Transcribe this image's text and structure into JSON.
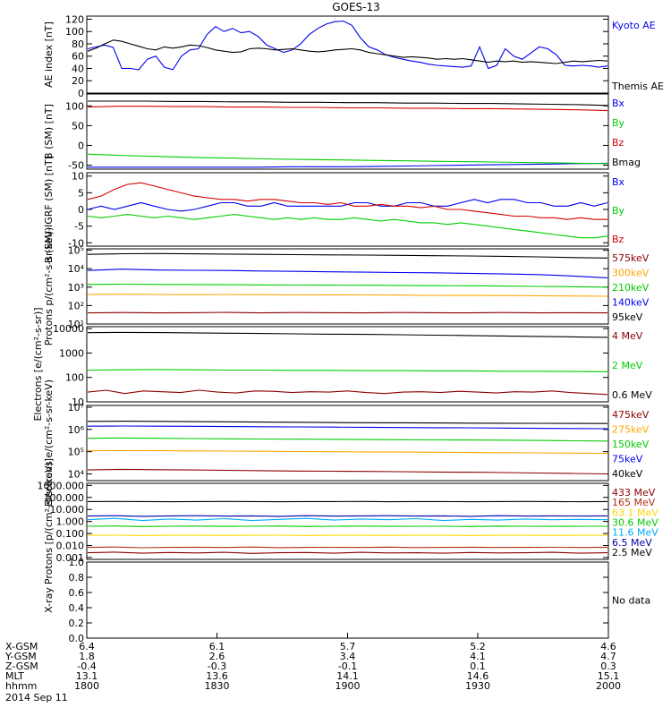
{
  "title": "GOES-13",
  "colors": {
    "black": "#000000",
    "blue": "#0000ee",
    "red": "#d40000",
    "green": "#00cc00",
    "darkred": "#8b0000",
    "orange": "#ffa500",
    "teal": "#00cc88",
    "darkblue": "#0000aa",
    "yellow": "#ffd700",
    "cyan": "#00aaff",
    "purple": "#8b008b",
    "brown": "#b03010"
  },
  "time_axis": {
    "rows": [
      {
        "label": "X-GSM",
        "values": [
          "6.4",
          "6.1",
          "5.7",
          "5.2",
          "4.6"
        ]
      },
      {
        "label": "Y-GSM",
        "values": [
          "1.8",
          "2.6",
          "3.4",
          "4.1",
          "4.7"
        ]
      },
      {
        "label": "Z-GSM",
        "values": [
          "-0.4",
          "-0.3",
          "-0.1",
          "0.1",
          "0.3"
        ]
      },
      {
        "label": "MLT",
        "values": [
          "13.1",
          "13.6",
          "14.1",
          "14.6",
          "15.1"
        ]
      },
      {
        "label": "hhmm",
        "values": [
          "1800",
          "1830",
          "1900",
          "1930",
          "2000"
        ]
      }
    ],
    "date": "2014 Sep 11"
  },
  "chart_data": [
    {
      "type": "line",
      "ylabel": "AE index [nT]",
      "ylim": [
        0,
        125
      ],
      "yticks": [
        "0",
        "20",
        "40",
        "60",
        "80",
        "100",
        "120"
      ],
      "ytick_values": [
        0,
        20,
        40,
        60,
        80,
        100,
        120
      ],
      "series": [
        {
          "name": "Kyoto AE",
          "color": "#0000ee",
          "values": [
            72,
            75,
            78,
            74,
            40,
            40,
            38,
            55,
            60,
            42,
            38,
            60,
            70,
            72,
            95,
            108,
            100,
            105,
            98,
            100,
            92,
            78,
            72,
            66,
            70,
            80,
            95,
            105,
            112,
            116,
            117,
            110,
            90,
            75,
            70,
            62,
            58,
            55,
            52,
            50,
            47,
            45,
            44,
            43,
            42,
            44,
            75,
            40,
            45,
            72,
            60,
            55,
            65,
            75,
            72,
            62,
            45,
            44,
            45,
            44,
            42,
            44
          ]
        },
        {
          "name": "Themis AE",
          "color": "#000000",
          "values": [
            68,
            73,
            80,
            86,
            84,
            80,
            76,
            72,
            70,
            75,
            73,
            75,
            78,
            77,
            74,
            70,
            68,
            66,
            67,
            72,
            73,
            72,
            70,
            71,
            72,
            70,
            68,
            67,
            68,
            70,
            71,
            72,
            70,
            66,
            64,
            62,
            60,
            58,
            59,
            58,
            57,
            55,
            56,
            55,
            56,
            54,
            52,
            50,
            52,
            51,
            52,
            50,
            51,
            50,
            49,
            48,
            50,
            52,
            51,
            52,
            53,
            52
          ]
        }
      ]
    },
    {
      "type": "line",
      "ylabel": "B (SM) [nT]",
      "ylim": [
        -60,
        130
      ],
      "yticks": [
        "-50",
        "0",
        "50",
        "100"
      ],
      "ytick_values": [
        -50,
        0,
        50,
        100
      ],
      "series": [
        {
          "name": "Bx",
          "color": "#0000ee",
          "values": [
            -55,
            -55,
            -55,
            -55,
            -55,
            -55,
            -55,
            -54,
            -54,
            -54,
            -53,
            -52,
            -51,
            -50,
            -49,
            -48,
            -47,
            -46,
            -45
          ]
        },
        {
          "name": "By",
          "color": "#00cc00",
          "values": [
            -22,
            -25,
            -27,
            -29,
            -31,
            -32,
            -34,
            -35,
            -36,
            -37,
            -38,
            -39,
            -40,
            -41,
            -42,
            -43,
            -44,
            -45,
            -46
          ]
        },
        {
          "name": "Bz",
          "color": "#d40000",
          "values": [
            97,
            99,
            99,
            98,
            98,
            97,
            97,
            96,
            96,
            95,
            95,
            94,
            94,
            93,
            93,
            92,
            91,
            90,
            88
          ]
        },
        {
          "name": "Bmag",
          "color": "#000000",
          "values": [
            112,
            112,
            112,
            111,
            111,
            110,
            110,
            109,
            109,
            108,
            108,
            107,
            107,
            106,
            106,
            105,
            104,
            103,
            101
          ]
        }
      ]
    },
    {
      "type": "line",
      "ylabel": "B (SM)-IGRF (SM) [nT]",
      "ylim": [
        -11,
        11
      ],
      "yticks": [
        "-10",
        "-5",
        "0",
        "5",
        "10"
      ],
      "ytick_values": [
        -10,
        -5,
        0,
        5,
        10
      ],
      "series": [
        {
          "name": "Bx",
          "color": "#0000ee",
          "values": [
            0,
            1,
            0,
            1,
            2,
            1,
            0,
            -0.5,
            0,
            1,
            2,
            2,
            1,
            1,
            2,
            1,
            1,
            1,
            1,
            1,
            2,
            2,
            1,
            1,
            2,
            2,
            1,
            1,
            2,
            3,
            2,
            3,
            3,
            2,
            2,
            1,
            1,
            2,
            1,
            2
          ]
        },
        {
          "name": "By",
          "color": "#00cc00",
          "values": [
            -2,
            -2.5,
            -2,
            -1.5,
            -2,
            -2.5,
            -2,
            -2.5,
            -3,
            -2.5,
            -2,
            -1.5,
            -2,
            -2.5,
            -3,
            -2.5,
            -3,
            -2.5,
            -3,
            -3,
            -2.5,
            -3,
            -3.5,
            -3,
            -3.5,
            -4,
            -4,
            -4.5,
            -4,
            -4.5,
            -5,
            -5.5,
            -6,
            -6.5,
            -7,
            -7.5,
            -8,
            -8.5,
            -8.5,
            -8
          ]
        },
        {
          "name": "Bz",
          "color": "#d40000",
          "values": [
            3,
            4,
            6,
            7.5,
            8,
            7,
            6,
            5,
            4,
            3.5,
            3,
            3,
            2.5,
            3,
            3,
            2.5,
            2,
            2,
            1.5,
            2,
            1,
            1,
            1.5,
            1,
            1,
            0.5,
            1,
            0,
            0,
            -0.5,
            -1,
            -1.5,
            -2,
            -2,
            -2.5,
            -2.5,
            -3,
            -2.5,
            -3,
            -3
          ]
        }
      ]
    },
    {
      "type": "line",
      "ylabel": "Protons p/(cm²-s-sr-keV)",
      "log": true,
      "ylim": [
        10,
        120000
      ],
      "yticks": [
        "10¹",
        "10²",
        "10³",
        "10⁴",
        "10⁵"
      ],
      "ytick_values": [
        10,
        100,
        1000,
        10000,
        100000
      ],
      "series": [
        {
          "name": "575keV",
          "color": "#8b0000",
          "values": [
            40,
            42,
            40,
            41,
            43,
            40,
            42,
            41,
            40,
            42,
            41,
            40,
            42,
            40,
            41,
            40
          ]
        },
        {
          "name": "300keV",
          "color": "#ffa500",
          "values": [
            400,
            410,
            400,
            390,
            400,
            390,
            380,
            385,
            380,
            370,
            360,
            355,
            350,
            340,
            330,
            320
          ]
        },
        {
          "name": "210keV",
          "color": "#00cc00",
          "values": [
            1400,
            1450,
            1400,
            1380,
            1350,
            1320,
            1300,
            1280,
            1260,
            1240,
            1200,
            1180,
            1150,
            1100,
            1050,
            1000
          ]
        },
        {
          "name": "140keV",
          "color": "#0000ee",
          "values": [
            8000,
            9500,
            8500,
            8200,
            8000,
            7500,
            7200,
            6800,
            6500,
            6200,
            6000,
            5600,
            5200,
            4800,
            4000,
            3200
          ]
        },
        {
          "name": "95keV",
          "color": "#000000",
          "values": [
            60000,
            65000,
            66000,
            64000,
            62000,
            60000,
            58000,
            56000,
            55000,
            53000,
            51000,
            49000,
            47000,
            44000,
            40000,
            38000
          ]
        }
      ]
    },
    {
      "type": "line",
      "ylabel": "Electrons [e/(cm²-s-sr)]",
      "log": true,
      "ylim": [
        10,
        12000
      ],
      "yticks": [
        "10",
        "100",
        "1000",
        "10000"
      ],
      "ytick_values": [
        10,
        100,
        1000,
        10000
      ],
      "series": [
        {
          "name": "4 MeV",
          "color": "#8b0000",
          "values": [
            25,
            30,
            22,
            28,
            26,
            24,
            30,
            25,
            23,
            28,
            27,
            24,
            26,
            25,
            28,
            24,
            22,
            25,
            26,
            24,
            27,
            25,
            23,
            26,
            25,
            28,
            24,
            22,
            20
          ]
        },
        {
          "name": "2 MeV",
          "color": "#00cc00",
          "values": [
            200,
            205,
            210,
            205,
            200,
            200,
            195,
            195,
            190,
            190,
            185,
            185,
            180,
            180,
            175,
            172
          ]
        },
        {
          "name": "0.6 MeV",
          "color": "#000000",
          "values": [
            6800,
            7000,
            6900,
            6700,
            6500,
            6300,
            6100,
            5900,
            5800,
            5600,
            5400,
            5200,
            5000,
            4800,
            4600,
            4400
          ]
        }
      ]
    },
    {
      "type": "line",
      "ylabel": "Electrons e/(cm²-s-sr-keV)",
      "log": true,
      "ylim": [
        5000,
        12000000
      ],
      "yticks": [
        "10⁴",
        "10⁵",
        "10⁶",
        "10⁷"
      ],
      "ytick_values": [
        10000,
        100000,
        1000000,
        10000000
      ],
      "series": [
        {
          "name": "475keV",
          "color": "#8b0000",
          "values": [
            15000,
            16000,
            15500,
            15000,
            14500,
            14000,
            13500,
            13200,
            13000,
            12600,
            12200,
            12000,
            11500,
            11000,
            10500,
            10000
          ]
        },
        {
          "name": "275keV",
          "color": "#ffa500",
          "values": [
            110000,
            112000,
            110000,
            108000,
            106000,
            104000,
            102000,
            100000,
            98000,
            96000,
            94000,
            92000,
            90000,
            88000,
            86000,
            84000
          ]
        },
        {
          "name": "150keV",
          "color": "#00cc00",
          "values": [
            400000,
            410000,
            400000,
            390000,
            380000,
            370000,
            365000,
            360000,
            350000,
            345000,
            340000,
            335000,
            330000,
            320000,
            310000,
            300000
          ]
        },
        {
          "name": "75keV",
          "color": "#0000ee",
          "values": [
            1400000,
            1420000,
            1400000,
            1380000,
            1350000,
            1320000,
            1300000,
            1280000,
            1250000,
            1220000,
            1200000,
            1180000,
            1150000,
            1120000,
            1100000,
            1080000
          ]
        },
        {
          "name": "40keV",
          "color": "#000000",
          "values": [
            2300000,
            2350000,
            2300000,
            2250000,
            2200000,
            2150000,
            2100000,
            2050000,
            2000000,
            1980000,
            1950000,
            1920000,
            1900000,
            1880000,
            1860000,
            1850000
          ]
        }
      ]
    },
    {
      "type": "line",
      "ylabel": "Protons [p/(cm²-s-sr-keV)]",
      "log": true,
      "ylim": [
        0.0007,
        1500
      ],
      "yticks": [
        "0.001",
        "0.010",
        "0.100",
        "1.000",
        "10.000",
        "100.000",
        "1000.000"
      ],
      "ytick_values": [
        0.001,
        0.01,
        0.1,
        1,
        10,
        100,
        1000
      ],
      "series": [
        {
          "name": "433 MeV",
          "color": "#8b0000",
          "values": [
            0.0025,
            0.0028,
            0.0023,
            0.0026,
            0.0024,
            0.0027,
            0.0022,
            0.0025,
            0.0026,
            0.0023,
            0.0027,
            0.0024,
            0.0025,
            0.0023,
            0.0026,
            0.0024,
            0.0025,
            0.0027,
            0.0023,
            0.0025
          ]
        },
        {
          "name": "165 MeV",
          "color": "#b03010",
          "values": [
            0.007,
            0.0075,
            0.0065,
            0.007,
            0.0072,
            0.0068,
            0.0074,
            0.0066,
            0.007,
            0.0071,
            0.0069,
            0.0073,
            0.0067,
            0.007,
            0.0072,
            0.0068,
            0.007,
            0.0071,
            0.0069,
            0.007
          ]
        },
        {
          "name": "63.1 MeV",
          "color": "#ffd700",
          "values": [
            0.07,
            0.072,
            0.068,
            0.07,
            0.071,
            0.069,
            0.07,
            0.072,
            0.068,
            0.07,
            0.071,
            0.069,
            0.07,
            0.07,
            0.068,
            0.071,
            0.07,
            0.069,
            0.07,
            0.07
          ]
        },
        {
          "name": "30.6 MeV",
          "color": "#00cc00",
          "values": [
            0.4,
            0.42,
            0.38,
            0.4,
            0.41,
            0.39,
            0.4,
            0.42,
            0.38,
            0.4,
            0.41,
            0.39,
            0.4,
            0.4,
            0.38,
            0.41,
            0.4,
            0.39,
            0.4,
            0.4
          ]
        },
        {
          "name": "11.6 MeV",
          "color": "#00aaff",
          "values": [
            1.4,
            1.8,
            1.2,
            1.6,
            1.3,
            1.7,
            1.2,
            1.5,
            1.8,
            1.3,
            1.6,
            1.4,
            1.7,
            1.2,
            1.5,
            1.3,
            1.6,
            1.4,
            1.5,
            1.4
          ]
        },
        {
          "name": "6.5 MeV",
          "color": "#0000aa",
          "values": [
            2.8,
            3.0,
            2.7,
            2.9,
            3.0,
            2.8,
            2.9,
            2.7,
            3.0,
            2.8,
            2.9,
            3.0,
            2.8,
            2.9,
            2.7,
            3.0,
            2.8,
            2.9,
            2.8,
            2.9
          ]
        },
        {
          "name": "2.5 MeV",
          "color": "#000000",
          "values": [
            45,
            46,
            45,
            44,
            45,
            46,
            45,
            44,
            45,
            45,
            46,
            44,
            45,
            45,
            44,
            45,
            46,
            45,
            44,
            45
          ]
        }
      ]
    },
    {
      "type": "line",
      "ylabel": "X-ray",
      "ylim": [
        0,
        1
      ],
      "yticks": [
        "0.0",
        "0.2",
        "0.4",
        "0.6",
        "0.8",
        "1.0"
      ],
      "ytick_values": [
        0,
        0.2,
        0.4,
        0.6,
        0.8,
        1.0
      ],
      "note": "No data",
      "series": []
    }
  ]
}
